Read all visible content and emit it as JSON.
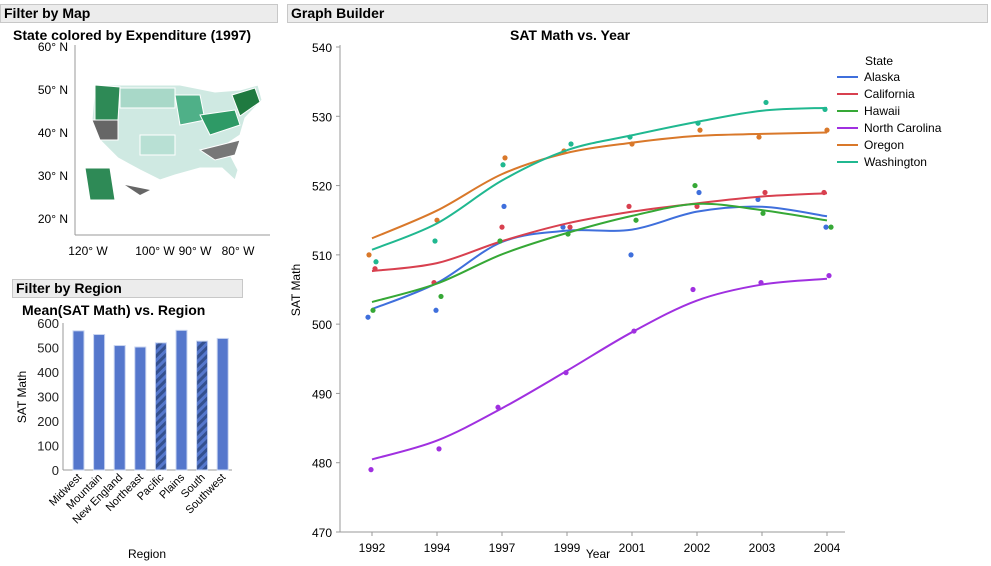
{
  "panels": {
    "map_header": "Filter by Map",
    "region_header": "Filter by Region",
    "graph_header": "Graph Builder"
  },
  "map": {
    "title": "State colored by Expenditure (1997)",
    "lat_ticks": [
      "60° N",
      "50° N",
      "40° N",
      "30° N",
      "20° N"
    ],
    "lon_ticks": [
      "120° W",
      "100° W",
      "90° W",
      "80° W"
    ]
  },
  "chart_data": [
    {
      "type": "bar",
      "title": "Mean(SAT Math) vs. Region",
      "xlabel": "Region",
      "ylabel": "SAT Math",
      "ylim": [
        0,
        600
      ],
      "yticks": [
        "0",
        "100",
        "200",
        "300",
        "400",
        "500",
        "600"
      ],
      "categories": [
        "Midwest",
        "Mountain",
        "New England",
        "Northeast",
        "Pacific",
        "Plains",
        "South",
        "Southwest"
      ],
      "values": [
        568,
        553,
        508,
        502,
        519,
        570,
        526,
        537
      ],
      "hatched": [
        false,
        false,
        false,
        false,
        true,
        false,
        true,
        false
      ],
      "color": "#5577cc"
    },
    {
      "type": "line",
      "title": "SAT Math vs. Year",
      "xlabel": "Year",
      "ylabel": "SAT Math",
      "ylim": [
        470,
        540
      ],
      "yticks": [
        "470",
        "480",
        "490",
        "500",
        "510",
        "520",
        "530",
        "540"
      ],
      "x": [
        "1992",
        "1994",
        "1997",
        "1999",
        "2001",
        "2002",
        "2003",
        "2004"
      ],
      "legend_title": "State",
      "legend": "right",
      "series": [
        {
          "name": "Alaska",
          "color": "#3f6fdc",
          "values": [
            501,
            502,
            517,
            514,
            510,
            519,
            518,
            514
          ]
        },
        {
          "name": "California",
          "color": "#d8404f",
          "values": [
            508,
            506,
            514,
            514,
            517,
            517,
            519,
            519
          ]
        },
        {
          "name": "Hawaii",
          "color": "#36a836",
          "values": [
            502,
            504,
            512,
            513,
            515,
            520,
            516,
            514
          ]
        },
        {
          "name": "North Carolina",
          "color": "#a030e0",
          "values": [
            479,
            482,
            488,
            493,
            499,
            505,
            506,
            507
          ]
        },
        {
          "name": "Oregon",
          "color": "#d9782a",
          "values": [
            510,
            515,
            524,
            525,
            526,
            528,
            527,
            528
          ]
        },
        {
          "name": "Washington",
          "color": "#20b890",
          "values": [
            509,
            512,
            523,
            526,
            527,
            529,
            532,
            531
          ]
        }
      ]
    }
  ]
}
